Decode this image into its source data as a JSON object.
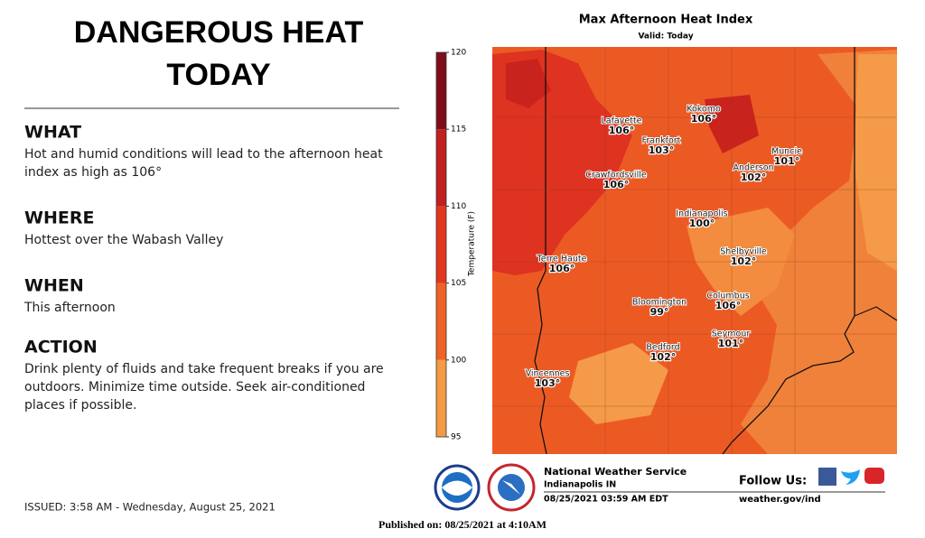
{
  "header": {
    "title_line1": "DANGEROUS HEAT",
    "title_line2": "TODAY"
  },
  "sections": [
    {
      "heading": "WHAT",
      "lines": [
        "Hot and humid conditions will lead to the afternoon heat",
        "index as high as 106°"
      ]
    },
    {
      "heading": "WHERE",
      "lines": [
        "Hottest over the Wabash Valley"
      ]
    },
    {
      "heading": "WHEN",
      "lines": [
        "This afternoon"
      ]
    },
    {
      "heading": "ACTION",
      "lines": [
        "Drink plenty of fluids and take frequent breaks if you are",
        "outdoors.  Minimize time outside. Seek air-conditioned",
        "places if possible."
      ]
    }
  ],
  "issued": "ISSUED: 3:58 AM -  Wednesday, August 25, 2021",
  "published": "Published on: 08/25/2021 at 4:10AM",
  "map": {
    "title": "Max Afternoon Heat Index",
    "subtitle": "Valid: Today",
    "colorbar_label": "Temperature (F)",
    "colorbar_ticks": [
      120,
      115,
      110,
      105,
      100,
      95
    ],
    "cities": [
      {
        "name": "Lafayette",
        "value": "106°"
      },
      {
        "name": "Kokomo",
        "value": "106°"
      },
      {
        "name": "Frankfort",
        "value": "103°"
      },
      {
        "name": "Muncie",
        "value": "101°"
      },
      {
        "name": "Anderson",
        "value": "102°"
      },
      {
        "name": "Crawfordsville",
        "value": "106°"
      },
      {
        "name": "Indianapolis",
        "value": "100°"
      },
      {
        "name": "Shelbyville",
        "value": "102°"
      },
      {
        "name": "Terre Haute",
        "value": "106°"
      },
      {
        "name": "Bloomington",
        "value": "99°"
      },
      {
        "name": "Columbus",
        "value": "106°"
      },
      {
        "name": "Seymour",
        "value": "101°"
      },
      {
        "name": "Bedford",
        "value": "102°"
      },
      {
        "name": "Vincennes",
        "value": "103°"
      }
    ]
  },
  "footer": {
    "office": "National Weather Service",
    "location": "Indianapolis IN",
    "timestamp": "08/25/2021 03:59 AM EDT",
    "follow": "Follow Us:",
    "website": "weather.gov/ind"
  }
}
